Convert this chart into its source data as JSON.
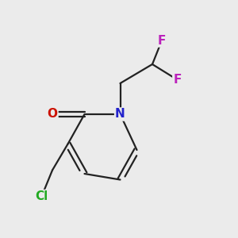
{
  "bg_color": "#ebebeb",
  "bond_color": "#222222",
  "atoms": {
    "N": {
      "color": "#2222cc"
    },
    "O": {
      "color": "#cc1100"
    },
    "Cl": {
      "color": "#22aa22"
    },
    "F": {
      "color": "#bb22bb"
    }
  }
}
